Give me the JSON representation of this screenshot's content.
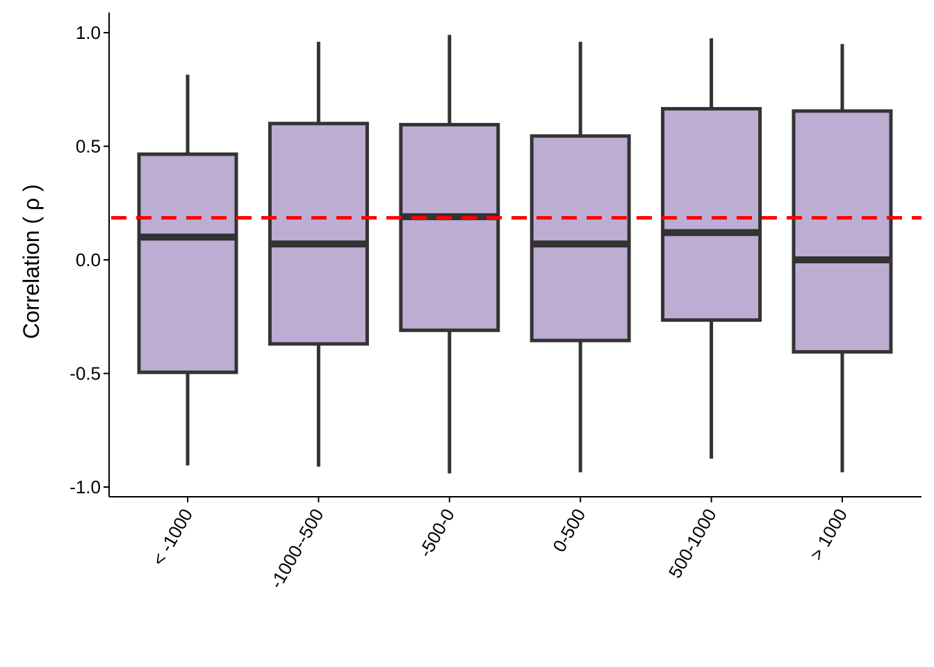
{
  "chart_data": {
    "type": "box",
    "title": "",
    "xlabel": "",
    "ylabel": "Correlation ( ρ )",
    "ylim": [
      -1.04,
      1.09
    ],
    "y_ticks": [
      {
        "value": 1.0,
        "label": "1.0"
      },
      {
        "value": 0.5,
        "label": "0.5"
      },
      {
        "value": 0.0,
        "label": "0.0"
      },
      {
        "value": -0.5,
        "label": "-0.5"
      },
      {
        "value": -1.0,
        "label": "-1.0"
      }
    ],
    "categories": [
      "< -1000",
      "-1000--500",
      "-500-0",
      "0-500",
      "500-1000",
      "> 1000"
    ],
    "boxes": [
      {
        "category": "< -1000",
        "whisker_low": -0.905,
        "q1": -0.495,
        "median": 0.1,
        "q3": 0.465,
        "whisker_high": 0.815
      },
      {
        "category": "-1000--500",
        "whisker_low": -0.91,
        "q1": -0.37,
        "median": 0.07,
        "q3": 0.6,
        "whisker_high": 0.96
      },
      {
        "category": "-500-0",
        "whisker_low": -0.94,
        "q1": -0.31,
        "median": 0.19,
        "q3": 0.595,
        "whisker_high": 0.99
      },
      {
        "category": "0-500",
        "whisker_low": -0.935,
        "q1": -0.355,
        "median": 0.07,
        "q3": 0.545,
        "whisker_high": 0.96
      },
      {
        "category": "500-1000",
        "whisker_low": -0.875,
        "q1": -0.265,
        "median": 0.12,
        "q3": 0.665,
        "whisker_high": 0.975
      },
      {
        "category": "> 1000",
        "whisker_low": -0.935,
        "q1": -0.405,
        "median": 0.0,
        "q3": 0.655,
        "whisker_high": 0.95
      }
    ],
    "reference_line": {
      "value": 0.185,
      "style": "dashed"
    },
    "grid": false,
    "legend": "none",
    "colors": {
      "box_fill": "#bdadd3",
      "box_stroke": "#333333",
      "reference_line": "#ff0000",
      "axis": "#000000"
    }
  }
}
